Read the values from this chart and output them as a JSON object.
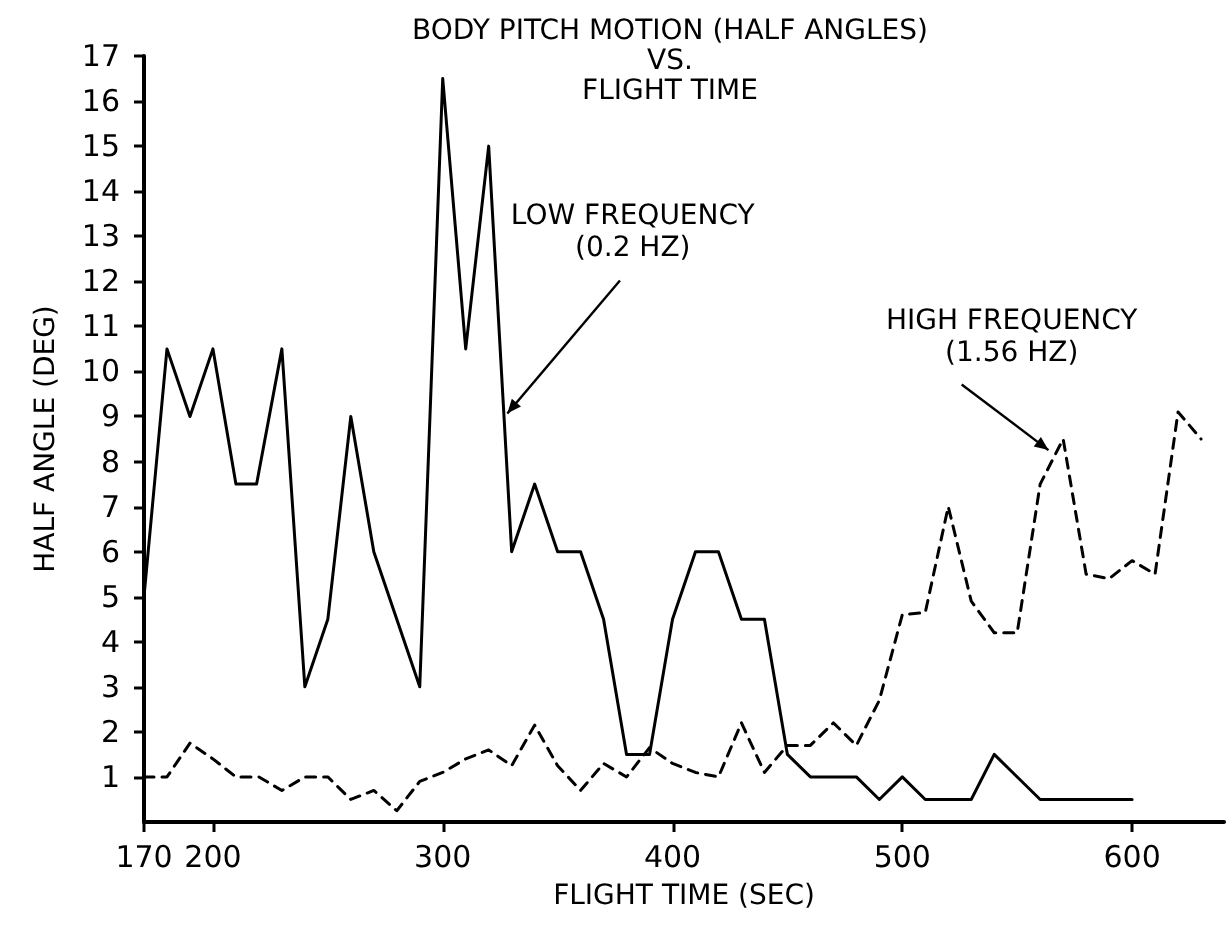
{
  "chart_data": {
    "type": "line",
    "title": "BODY PITCH MOTION (HALF ANGLES)\nVS.\nFLIGHT TIME",
    "xlabel": "FLIGHT TIME (SEC)",
    "ylabel": "HALF ANGLE (DEG)",
    "series": [
      {
        "color": "#000000",
        "line_style": "solid",
        "x": [
          170,
          180,
          190,
          200,
          210,
          219,
          230,
          240,
          250,
          260,
          270,
          290,
          300,
          310,
          320,
          330,
          340,
          350,
          360,
          370,
          380,
          390,
          400,
          410,
          420,
          430,
          440,
          450,
          460,
          480,
          490,
          500,
          510,
          530,
          540,
          560,
          600
        ],
        "values": [
          5,
          10.5,
          9,
          10.5,
          7.5,
          7.5,
          10.5,
          3,
          4.5,
          9,
          6,
          3,
          16.5,
          10.5,
          15,
          6,
          7.5,
          6,
          6,
          4.5,
          1.5,
          1.5,
          4.5,
          6,
          6,
          4.5,
          4.5,
          1.5,
          1,
          1,
          0.5,
          1,
          0.5,
          0.5,
          1.5,
          0.5,
          0.5
        ]
      },
      {
        "color": "#000000",
        "line_style": "dashed",
        "x": [
          170,
          180,
          190,
          200,
          210,
          220,
          230,
          240,
          250,
          260,
          270,
          280,
          290,
          300,
          310,
          320,
          330,
          340,
          350,
          360,
          370,
          380,
          390,
          400,
          410,
          420,
          430,
          440,
          450,
          460,
          470,
          480,
          490,
          500,
          510,
          520,
          530,
          540,
          550,
          560,
          570,
          580,
          590,
          600,
          610,
          620,
          630
        ],
        "values": [
          1,
          1,
          1.75,
          1.4,
          1,
          1,
          0.7,
          1,
          1,
          0.5,
          0.7,
          0.25,
          0.9,
          1.1,
          1.4,
          1.6,
          1.25,
          2.15,
          1.25,
          0.7,
          1.3,
          1,
          1.65,
          1.3,
          1.1,
          1,
          2.2,
          1.1,
          1.7,
          1.7,
          2.2,
          1.7,
          2.7,
          4.6,
          4.65,
          7,
          4.9,
          4.2,
          4.2,
          7.5,
          8.5,
          5.5,
          5.4,
          5.8,
          5.5,
          9.1,
          8.5
        ]
      }
    ],
    "xlim": [
      170,
      640
    ],
    "xticks": [
      170,
      200,
      300,
      400,
      500,
      600
    ],
    "ylim": [
      0,
      17
    ],
    "yticks": [
      1,
      2,
      3,
      4,
      5,
      6,
      7,
      8,
      9,
      10,
      11,
      12,
      13,
      14,
      15,
      16,
      17
    ],
    "grid": false,
    "marker": "none",
    "annotations": [
      {
        "text": "LOW FREQUENCY\n(0.2 HZ)",
        "x": 327,
        "y": 9
      },
      {
        "text": "HIGH FREQUENCY\n(1.56 HZ)",
        "x": 565,
        "y": 8.2
      }
    ]
  }
}
